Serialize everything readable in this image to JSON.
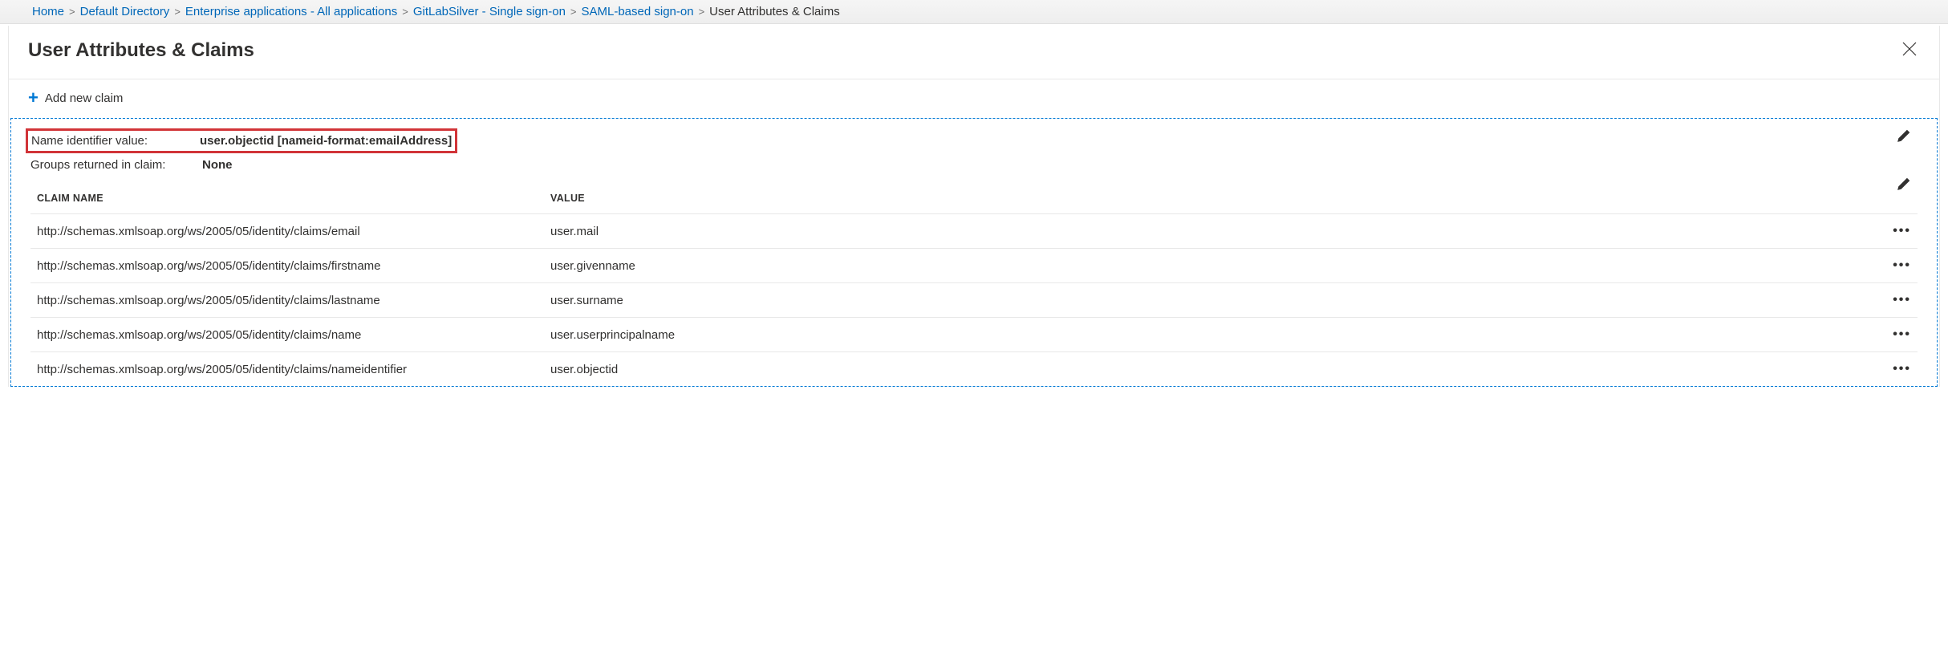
{
  "breadcrumb": {
    "items": [
      {
        "label": "Home",
        "link": true
      },
      {
        "label": "Default Directory",
        "link": true
      },
      {
        "label": "Enterprise applications - All applications",
        "link": true
      },
      {
        "label": "GitLabSilver - Single sign-on",
        "link": true
      },
      {
        "label": "SAML-based sign-on",
        "link": true
      },
      {
        "label": "User Attributes & Claims",
        "link": false
      }
    ],
    "separator": ">"
  },
  "panel": {
    "title": "User Attributes & Claims"
  },
  "toolbar": {
    "add_label": "Add new claim"
  },
  "summary": {
    "name_id_label": "Name identifier value:",
    "name_id_value": "user.objectid [nameid-format:emailAddress]",
    "groups_label": "Groups returned in claim:",
    "groups_value": "None"
  },
  "table": {
    "headers": {
      "claim_name": "CLAIM NAME",
      "value": "VALUE"
    },
    "rows": [
      {
        "claim": "http://schemas.xmlsoap.org/ws/2005/05/identity/claims/email",
        "value": "user.mail"
      },
      {
        "claim": "http://schemas.xmlsoap.org/ws/2005/05/identity/claims/firstname",
        "value": "user.givenname"
      },
      {
        "claim": "http://schemas.xmlsoap.org/ws/2005/05/identity/claims/lastname",
        "value": "user.surname"
      },
      {
        "claim": "http://schemas.xmlsoap.org/ws/2005/05/identity/claims/name",
        "value": "user.userprincipalname"
      },
      {
        "claim": "http://schemas.xmlsoap.org/ws/2005/05/identity/claims/nameidentifier",
        "value": "user.objectid"
      }
    ]
  },
  "colors": {
    "link": "#0067b8",
    "accent": "#0078d4",
    "highlight_border": "#d13438",
    "text": "#323130",
    "border": "#e8e8e8"
  }
}
